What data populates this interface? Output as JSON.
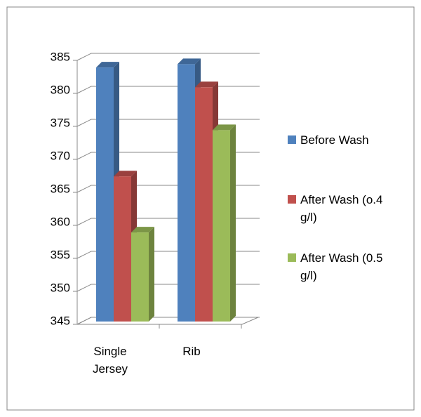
{
  "chart_data": {
    "type": "bar3d",
    "categories": [
      "Single Jersey",
      "Rib"
    ],
    "series": [
      {
        "name": "Before Wash",
        "color": "#4f81bd",
        "values": [
          383.5,
          384
        ]
      },
      {
        "name": "After Wash (o.4 g/l)",
        "color": "#c0504d",
        "values": [
          367,
          380.5
        ]
      },
      {
        "name": "After Wash (0.5 g/l)",
        "color": "#9bbb59",
        "values": [
          358.5,
          374
        ]
      }
    ],
    "ylim": [
      345,
      385
    ],
    "yticks": [
      345,
      350,
      355,
      360,
      365,
      370,
      375,
      380,
      385
    ],
    "grid": true,
    "legend": "right"
  }
}
